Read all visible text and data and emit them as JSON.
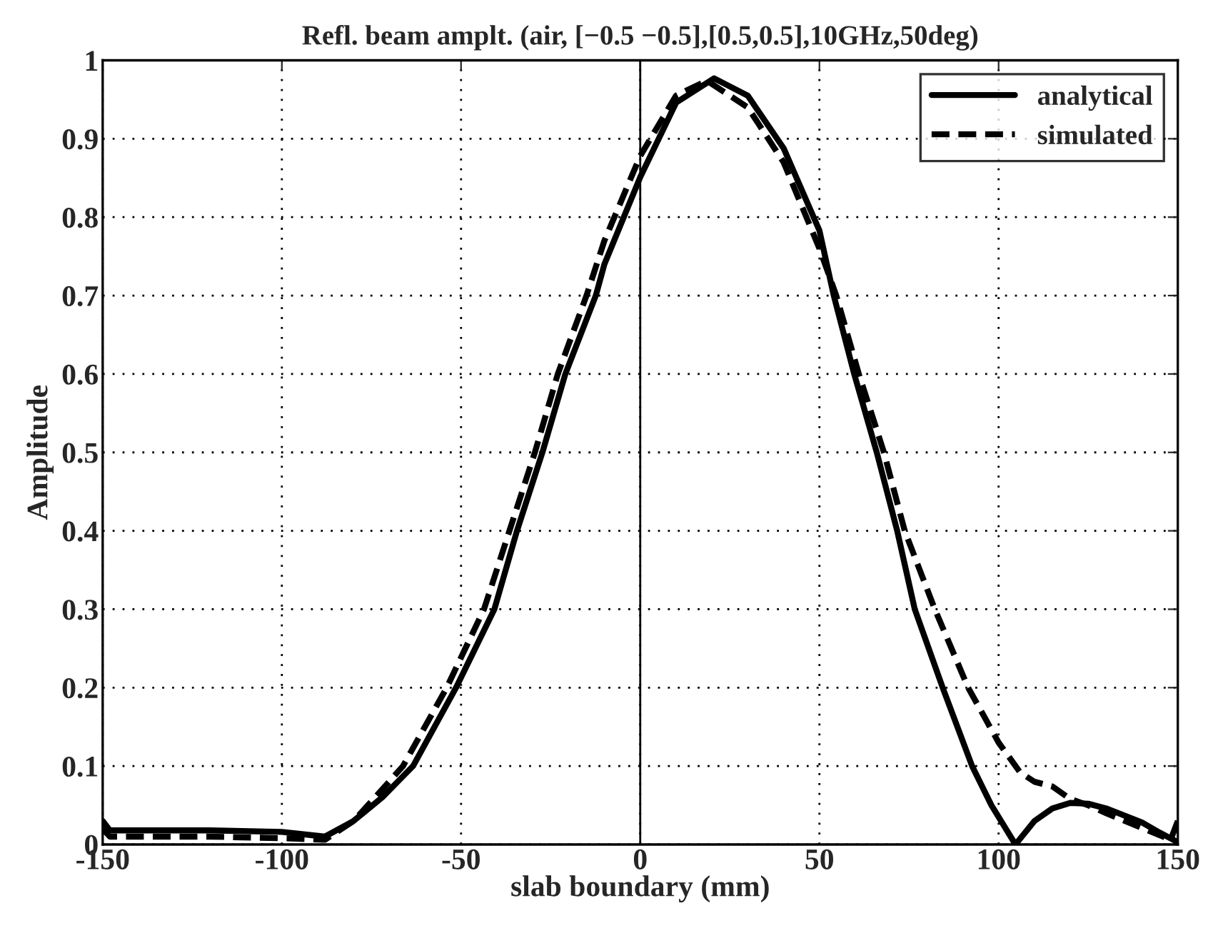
{
  "chart_data": {
    "type": "line",
    "title": "Refl. beam amplt. (air, [−0.5 −0.5],[0.5,0.5],10GHz,50deg)",
    "xlabel": "slab boundary (mm)",
    "ylabel": "Amplitude",
    "xlim": [
      -150,
      150
    ],
    "ylim": [
      0,
      1
    ],
    "xticks": [
      -150,
      -100,
      -50,
      0,
      50,
      100,
      150
    ],
    "yticks": [
      0,
      0.1,
      0.2,
      0.3,
      0.4,
      0.5,
      0.6,
      0.7,
      0.8,
      0.9,
      1
    ],
    "grid": true,
    "legend": "top right",
    "marker": "none",
    "ref_lines": [
      {
        "axis": "x",
        "value": 0,
        "color": "#000000",
        "line_style": "solid"
      }
    ],
    "series": [
      {
        "name": "analytical",
        "color": "#000000",
        "line_style": "solid",
        "x": [
          -150,
          -148,
          -140,
          -120,
          -100,
          -88,
          -80,
          -72,
          -63.4,
          -51.4,
          -40.7,
          -34.4,
          -27.3,
          -20.9,
          -12.4,
          -10,
          0,
          10,
          20.6,
          30,
          40,
          50,
          54,
          59.7,
          66,
          71.7,
          76.6,
          84.4,
          92.6,
          98,
          104.7,
          110,
          115,
          120,
          125,
          130,
          140,
          145,
          150
        ],
        "values": [
          0.03,
          0.018,
          0.018,
          0.018,
          0.016,
          0.01,
          0.03,
          0.06,
          0.1,
          0.2,
          0.3,
          0.4,
          0.5,
          0.6,
          0.7,
          0.74,
          0.851,
          0.946,
          0.977,
          0.955,
          0.888,
          0.783,
          0.7,
          0.6,
          0.5,
          0.4,
          0.3,
          0.2,
          0.1,
          0.05,
          0.0,
          0.03,
          0.046,
          0.053,
          0.052,
          0.046,
          0.028,
          0.015,
          0.003
        ]
      },
      {
        "name": "simulated",
        "color": "#000000",
        "line_style": "dashed",
        "x": [
          -150,
          -148,
          -140,
          -120,
          -100,
          -88,
          -80,
          -74,
          -66.2,
          -54,
          -43.6,
          -36.5,
          -29.4,
          -23,
          -15,
          -10,
          0,
          10,
          18.6,
          30,
          40,
          50,
          54.7,
          61,
          68,
          73.8,
          82.2,
          91.5,
          100,
          106,
          110,
          115,
          120,
          125,
          130,
          140,
          148,
          150
        ],
        "values": [
          0.02,
          0.01,
          0.01,
          0.01,
          0.008,
          0.006,
          0.03,
          0.06,
          0.1,
          0.2,
          0.3,
          0.4,
          0.5,
          0.6,
          0.7,
          0.77,
          0.878,
          0.955,
          0.974,
          0.94,
          0.87,
          0.76,
          0.7,
          0.6,
          0.5,
          0.4,
          0.3,
          0.2,
          0.13,
          0.092,
          0.08,
          0.074,
          0.058,
          0.05,
          0.04,
          0.021,
          0.006,
          0.03
        ]
      }
    ]
  }
}
